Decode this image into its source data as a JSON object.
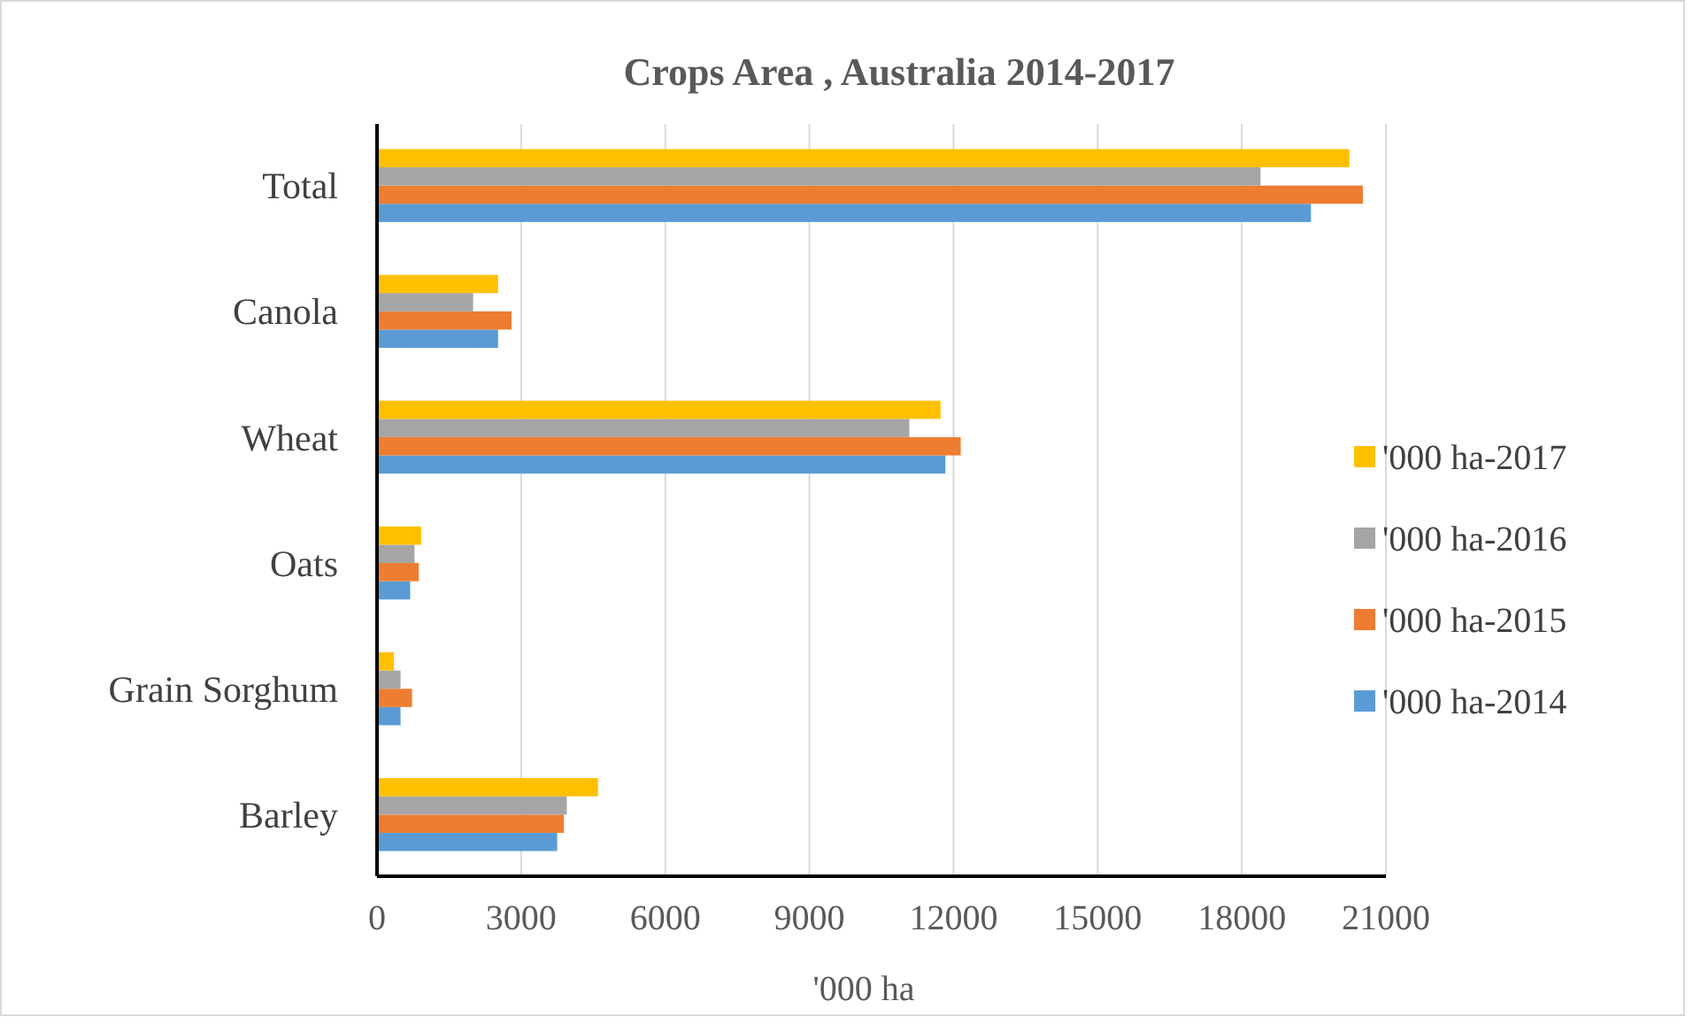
{
  "chart_data": {
    "type": "bar",
    "orientation": "horizontal",
    "title": "Crops Area , Australia 2014-2017",
    "xlabel": "'000 ha",
    "categories": [
      "Total",
      "Canola",
      "Wheat",
      "Oats",
      "Grain Sorghum",
      "Barley"
    ],
    "series": [
      {
        "name": "'000 ha-2014",
        "color": "#5b9bd5",
        "values": [
          19440,
          2520,
          11830,
          690,
          490,
          3750
        ]
      },
      {
        "name": "'000 ha-2015",
        "color": "#ed7d31",
        "values": [
          20520,
          2800,
          12150,
          870,
          730,
          3890
        ]
      },
      {
        "name": "'000 ha-2016",
        "color": "#a5a5a5",
        "values": [
          18390,
          2000,
          11080,
          780,
          490,
          3950
        ]
      },
      {
        "name": "'000 ha-2017",
        "color": "#ffc000",
        "values": [
          20240,
          2520,
          11730,
          920,
          350,
          4600
        ]
      }
    ],
    "xlim": [
      0,
      21000
    ],
    "xticks": [
      0,
      3000,
      6000,
      9000,
      12000,
      15000,
      18000,
      21000
    ],
    "grid": "x",
    "legend": "right"
  }
}
